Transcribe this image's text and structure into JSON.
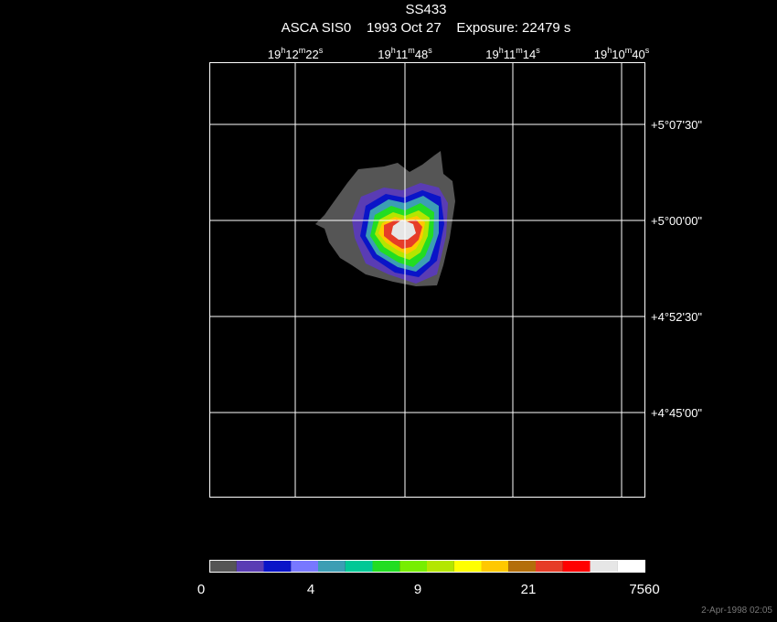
{
  "title": "SS433",
  "subtitle": "ASCA SIS0    1993 Oct 27    Exposure: 22479 s",
  "ra_labels": [
    [
      "19",
      "h",
      "12",
      "m",
      "22",
      "s"
    ],
    [
      "19",
      "h",
      "11",
      "m",
      "48",
      "s"
    ],
    [
      "19",
      "h",
      "11",
      "m",
      "14",
      "s"
    ],
    [
      "19",
      "h",
      "10",
      "m",
      "40",
      "s"
    ]
  ],
  "dec_labels": [
    "+5°07'30\"",
    "+5°00'00\"",
    "+4°52'30\"",
    "+4°45'00\""
  ],
  "colorbar": {
    "colors": [
      "#555555",
      "#5a3cb4",
      "#0a14c8",
      "#7878ff",
      "#3c9eb4",
      "#00c896",
      "#22dd22",
      "#77ee00",
      "#b4e600",
      "#ffff00",
      "#ffc800",
      "#b46e0a",
      "#e63c28",
      "#ff0000",
      "#e6e6e6",
      "#ffffff"
    ],
    "labels": [
      0,
      4,
      9,
      21,
      7560
    ]
  },
  "timestamp": "2-Apr-1998 02:05"
}
